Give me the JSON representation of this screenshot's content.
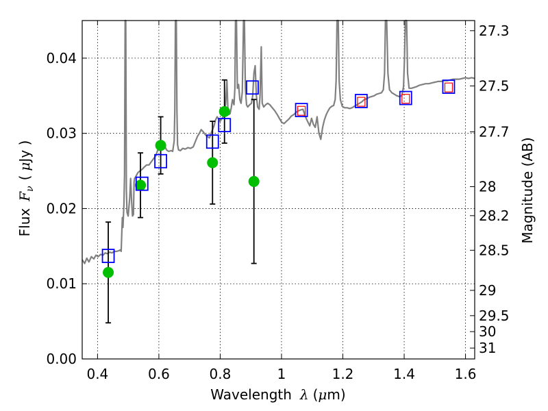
{
  "chart_data": {
    "type": "scatter",
    "xlabel_text": "Wavelength",
    "xlabel_symbol": "λ",
    "xlabel_unit_open": "(",
    "xlabel_unit_mu": "μ",
    "xlabel_unit_rest": "m)",
    "ylabel_text": "Flux",
    "ylabel_symbol": "F",
    "ylabel_subscript": "ν",
    "ylabel_unit_open": "(",
    "ylabel_unit_mu": "μ",
    "ylabel_unit_rest": "Jy )",
    "y2label": "Magnitude (AB)",
    "xlim": [
      0.35,
      1.63
    ],
    "ylim": [
      0.0,
      0.045
    ],
    "x_ticks": [
      0.4,
      0.6,
      0.8,
      1.0,
      1.2,
      1.4,
      1.6
    ],
    "x_tick_labels": [
      "0.4",
      "0.6",
      "0.8",
      "1",
      "1.2",
      "1.4",
      "1.6"
    ],
    "y_ticks": [
      0.0,
      0.01,
      0.02,
      0.03,
      0.04
    ],
    "y_tick_labels": [
      "0.00",
      "0.01",
      "0.02",
      "0.03",
      "0.04"
    ],
    "mag_ticks": [
      27.3,
      27.5,
      27.7,
      28,
      28.2,
      28.5,
      29,
      29.5,
      30,
      31
    ],
    "mag_tick_labels": [
      "27.3",
      "27.5",
      "27.7",
      "28",
      "28.2",
      "28.5",
      "29",
      "29.5",
      "30",
      "31"
    ],
    "grid": true,
    "colors": {
      "spectrum": "#808080",
      "observed": "#00bf00",
      "model": "#0000ff",
      "model_inner": "#ff0000",
      "errorbar": "#000000"
    },
    "series": [
      {
        "name": "model spectrum",
        "kind": "line",
        "points": [
          [
            0.35,
            0.0132
          ],
          [
            0.358,
            0.0127
          ],
          [
            0.365,
            0.0134
          ],
          [
            0.372,
            0.0129
          ],
          [
            0.38,
            0.0136
          ],
          [
            0.388,
            0.0133
          ],
          [
            0.395,
            0.0138
          ],
          [
            0.402,
            0.0136
          ],
          [
            0.41,
            0.0139
          ],
          [
            0.418,
            0.0138
          ],
          [
            0.425,
            0.0141
          ],
          [
            0.432,
            0.014
          ],
          [
            0.44,
            0.0142
          ],
          [
            0.447,
            0.0141
          ],
          [
            0.455,
            0.0143
          ],
          [
            0.462,
            0.0143
          ],
          [
            0.47,
            0.0144
          ],
          [
            0.474,
            0.0145
          ],
          [
            0.477,
            0.0143
          ],
          [
            0.479,
            0.0165
          ],
          [
            0.481,
            0.0188
          ],
          [
            0.483,
            0.0175
          ],
          [
            0.486,
            0.0205
          ],
          [
            0.488,
            0.0245
          ],
          [
            0.49,
            0.045
          ],
          [
            0.492,
            0.045
          ],
          [
            0.494,
            0.0225
          ],
          [
            0.496,
            0.0195
          ],
          [
            0.5,
            0.019
          ],
          [
            0.503,
            0.0205
          ],
          [
            0.505,
            0.0215
          ],
          [
            0.508,
            0.024
          ],
          [
            0.511,
            0.021
          ],
          [
            0.514,
            0.019
          ],
          [
            0.517,
            0.0192
          ],
          [
            0.519,
            0.0235
          ],
          [
            0.521,
            0.024
          ],
          [
            0.524,
            0.0242
          ],
          [
            0.528,
            0.0245
          ],
          [
            0.532,
            0.0248
          ],
          [
            0.538,
            0.025
          ],
          [
            0.545,
            0.0252
          ],
          [
            0.552,
            0.0255
          ],
          [
            0.56,
            0.0258
          ],
          [
            0.568,
            0.0258
          ],
          [
            0.575,
            0.0262
          ],
          [
            0.582,
            0.0266
          ],
          [
            0.59,
            0.027
          ],
          [
            0.598,
            0.028
          ],
          [
            0.605,
            0.029
          ],
          [
            0.612,
            0.029
          ],
          [
            0.618,
            0.0284
          ],
          [
            0.625,
            0.0278
          ],
          [
            0.632,
            0.0276
          ],
          [
            0.64,
            0.0277
          ],
          [
            0.645,
            0.0276
          ],
          [
            0.65,
            0.029
          ],
          [
            0.652,
            0.033
          ],
          [
            0.654,
            0.045
          ],
          [
            0.657,
            0.045
          ],
          [
            0.659,
            0.033
          ],
          [
            0.661,
            0.0285
          ],
          [
            0.664,
            0.0278
          ],
          [
            0.67,
            0.0277
          ],
          [
            0.678,
            0.028
          ],
          [
            0.686,
            0.0279
          ],
          [
            0.695,
            0.0281
          ],
          [
            0.703,
            0.028
          ],
          [
            0.712,
            0.0282
          ],
          [
            0.72,
            0.029
          ],
          [
            0.726,
            0.0296
          ],
          [
            0.732,
            0.03
          ],
          [
            0.738,
            0.0305
          ],
          [
            0.745,
            0.0302
          ],
          [
            0.752,
            0.0298
          ],
          [
            0.758,
            0.0296
          ],
          [
            0.765,
            0.0294
          ],
          [
            0.772,
            0.0302
          ],
          [
            0.78,
            0.031
          ],
          [
            0.785,
            0.0318
          ],
          [
            0.79,
            0.0322
          ],
          [
            0.795,
            0.0319
          ],
          [
            0.8,
            0.0316
          ],
          [
            0.806,
            0.032
          ],
          [
            0.81,
            0.0322
          ],
          [
            0.815,
            0.033
          ],
          [
            0.818,
            0.034
          ],
          [
            0.822,
            0.037
          ],
          [
            0.825,
            0.0335
          ],
          [
            0.828,
            0.0325
          ],
          [
            0.832,
            0.0326
          ],
          [
            0.836,
            0.0334
          ],
          [
            0.84,
            0.0345
          ],
          [
            0.845,
            0.0338
          ],
          [
            0.848,
            0.036
          ],
          [
            0.85,
            0.045
          ],
          [
            0.853,
            0.045
          ],
          [
            0.856,
            0.036
          ],
          [
            0.86,
            0.0365
          ],
          [
            0.864,
            0.0345
          ],
          [
            0.868,
            0.034
          ],
          [
            0.872,
            0.0355
          ],
          [
            0.874,
            0.04
          ],
          [
            0.876,
            0.045
          ],
          [
            0.879,
            0.045
          ],
          [
            0.882,
            0.036
          ],
          [
            0.886,
            0.0338
          ],
          [
            0.89,
            0.0335
          ],
          [
            0.896,
            0.0338
          ],
          [
            0.902,
            0.034
          ],
          [
            0.906,
            0.035
          ],
          [
            0.91,
            0.038
          ],
          [
            0.914,
            0.039
          ],
          [
            0.918,
            0.035
          ],
          [
            0.922,
            0.0335
          ],
          [
            0.927,
            0.0332
          ],
          [
            0.93,
            0.035
          ],
          [
            0.934,
            0.0415
          ],
          [
            0.937,
            0.034
          ],
          [
            0.942,
            0.0335
          ],
          [
            0.948,
            0.0338
          ],
          [
            0.955,
            0.034
          ],
          [
            0.962,
            0.0338
          ],
          [
            0.97,
            0.0334
          ],
          [
            0.978,
            0.033
          ],
          [
            0.986,
            0.0325
          ],
          [
            0.993,
            0.032
          ],
          [
            1.0,
            0.0315
          ],
          [
            1.008,
            0.0313
          ],
          [
            1.016,
            0.0316
          ],
          [
            1.024,
            0.0319
          ],
          [
            1.032,
            0.0323
          ],
          [
            1.04,
            0.0325
          ],
          [
            1.048,
            0.0328
          ],
          [
            1.055,
            0.033
          ],
          [
            1.062,
            0.0331
          ],
          [
            1.07,
            0.0332
          ],
          [
            1.078,
            0.0322
          ],
          [
            1.086,
            0.0315
          ],
          [
            1.092,
            0.031
          ],
          [
            1.098,
            0.032
          ],
          [
            1.104,
            0.0312
          ],
          [
            1.11,
            0.0308
          ],
          [
            1.116,
            0.0322
          ],
          [
            1.122,
            0.03
          ],
          [
            1.128,
            0.0292
          ],
          [
            1.134,
            0.0308
          ],
          [
            1.14,
            0.0318
          ],
          [
            1.146,
            0.0325
          ],
          [
            1.152,
            0.033
          ],
          [
            1.158,
            0.0334
          ],
          [
            1.164,
            0.0336
          ],
          [
            1.17,
            0.0337
          ],
          [
            1.175,
            0.0345
          ],
          [
            1.178,
            0.037
          ],
          [
            1.181,
            0.045
          ],
          [
            1.185,
            0.045
          ],
          [
            1.188,
            0.037
          ],
          [
            1.192,
            0.0345
          ],
          [
            1.198,
            0.0336
          ],
          [
            1.206,
            0.0334
          ],
          [
            1.214,
            0.0334
          ],
          [
            1.222,
            0.0333
          ],
          [
            1.23,
            0.0334
          ],
          [
            1.238,
            0.0336
          ],
          [
            1.246,
            0.0338
          ],
          [
            1.254,
            0.034
          ],
          [
            1.262,
            0.0342
          ],
          [
            1.27,
            0.0345
          ],
          [
            1.278,
            0.0346
          ],
          [
            1.286,
            0.0348
          ],
          [
            1.294,
            0.0349
          ],
          [
            1.302,
            0.035
          ],
          [
            1.31,
            0.0352
          ],
          [
            1.318,
            0.0353
          ],
          [
            1.326,
            0.0354
          ],
          [
            1.332,
            0.0358
          ],
          [
            1.336,
            0.038
          ],
          [
            1.339,
            0.045
          ],
          [
            1.343,
            0.045
          ],
          [
            1.347,
            0.038
          ],
          [
            1.352,
            0.0358
          ],
          [
            1.36,
            0.0354
          ],
          [
            1.368,
            0.0352
          ],
          [
            1.376,
            0.035
          ],
          [
            1.384,
            0.0349
          ],
          [
            1.392,
            0.035
          ],
          [
            1.398,
            0.0362
          ],
          [
            1.401,
            0.04
          ],
          [
            1.404,
            0.045
          ],
          [
            1.408,
            0.045
          ],
          [
            1.411,
            0.038
          ],
          [
            1.416,
            0.036
          ],
          [
            1.424,
            0.036
          ],
          [
            1.432,
            0.0361
          ],
          [
            1.44,
            0.0362
          ],
          [
            1.45,
            0.0364
          ],
          [
            1.46,
            0.0365
          ],
          [
            1.47,
            0.0366
          ],
          [
            1.48,
            0.0366
          ],
          [
            1.49,
            0.0367
          ],
          [
            1.5,
            0.0368
          ],
          [
            1.51,
            0.0369
          ],
          [
            1.52,
            0.0369
          ],
          [
            1.53,
            0.037
          ],
          [
            1.54,
            0.037
          ],
          [
            1.55,
            0.0371
          ],
          [
            1.56,
            0.0372
          ],
          [
            1.57,
            0.0372
          ],
          [
            1.58,
            0.0372
          ],
          [
            1.59,
            0.0373
          ],
          [
            1.6,
            0.0374
          ],
          [
            1.61,
            0.0373
          ],
          [
            1.62,
            0.0374
          ],
          [
            1.63,
            0.0373
          ]
        ]
      },
      {
        "name": "observed photometry",
        "kind": "points_with_errors",
        "x": [
          0.435,
          0.54,
          0.606,
          0.775,
          0.814,
          0.91
        ],
        "y": [
          0.0115,
          0.0231,
          0.0284,
          0.0261,
          0.0329,
          0.0236
        ],
        "yerr": [
          0.0067,
          0.0043,
          0.0038,
          0.0055,
          0.0042,
          0.0109
        ]
      },
      {
        "name": "model photometry",
        "kind": "open_squares",
        "x": [
          0.435,
          0.545,
          0.606,
          0.775,
          0.814,
          0.905,
          1.065,
          1.26,
          1.405,
          1.545
        ],
        "y": [
          0.0137,
          0.0233,
          0.0263,
          0.0289,
          0.0311,
          0.0361,
          0.0331,
          0.0343,
          0.0347,
          0.0362
        ]
      },
      {
        "name": "model photometry (IR)",
        "kind": "small_open_squares",
        "x": [
          1.065,
          1.26,
          1.405,
          1.545
        ],
        "y": [
          0.033,
          0.0342,
          0.0346,
          0.0361
        ]
      }
    ]
  }
}
